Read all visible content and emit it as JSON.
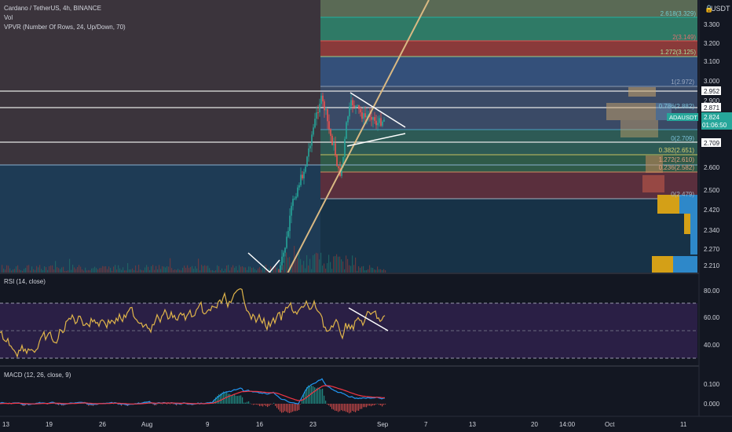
{
  "header": {
    "title": "Cardano / TetherUS, 4h, BINANCE",
    "vol_label": "Vol",
    "vpvr_label": "VPVR (Number Of Rows, 24, Up/Down, 70)",
    "currency": "USDT"
  },
  "price_axis": {
    "ticks": [
      "3.300",
      "3.200",
      "3.100",
      "3.000",
      "2.900",
      "2.600",
      "2.500",
      "2.420",
      "2.340",
      "2.270",
      "2.210"
    ],
    "highlighted": [
      "2.952",
      "2.871",
      "2.709"
    ],
    "current": {
      "symbol": "ADAUSDT",
      "price": "2.824",
      "countdown": "01:06:50"
    }
  },
  "fib_labels": [
    "2.618(3.329)",
    "2(3.149)",
    "1.272(3.125)",
    "1(2.972)",
    "0.786(2.882)",
    "0(2.709)",
    "0.382(2.651)",
    "1.272(2.610)",
    "0.236(2.582)",
    "0(2.479)"
  ],
  "rsi": {
    "label": "RSI (14, close)",
    "ticks": [
      "80.00",
      "60.00",
      "40.00"
    ]
  },
  "macd": {
    "label": "MACD (12, 26, close, 9)",
    "ticks": [
      "0.100",
      "0.000"
    ]
  },
  "time_axis": {
    "ticks": [
      "13",
      "19",
      "26",
      "Aug",
      "9",
      "16",
      "23",
      "Sep",
      "7",
      "13",
      "20",
      "14:00",
      "Oct",
      "11"
    ]
  },
  "colors": {
    "background": "#131722",
    "up": "#26a69a",
    "down": "#ef5350",
    "rsi_line": "#e0b54a",
    "macd_line": "#2196f3",
    "signal_line": "#f23645",
    "trend_line": "#d9b983",
    "vp_up": "#d4a017",
    "vp_down": "#2e88c9"
  },
  "chart_data": [
    {
      "type": "candlestick",
      "title": "Cardano / TetherUS, 4h, BINANCE",
      "ylim": [
        2.2,
        3.42
      ],
      "x_start": "Jul 10",
      "x_end": "Sep 1",
      "key_levels": [
        2.952,
        2.871,
        2.709
      ],
      "current_price": 2.824
    },
    {
      "type": "line",
      "title": "RSI (14, close)",
      "ylim": [
        25,
        93
      ],
      "levels": [
        70,
        50,
        30
      ]
    },
    {
      "type": "line",
      "title": "MACD (12, 26, close, 9)",
      "ylim": [
        -0.03,
        0.14
      ]
    }
  ]
}
